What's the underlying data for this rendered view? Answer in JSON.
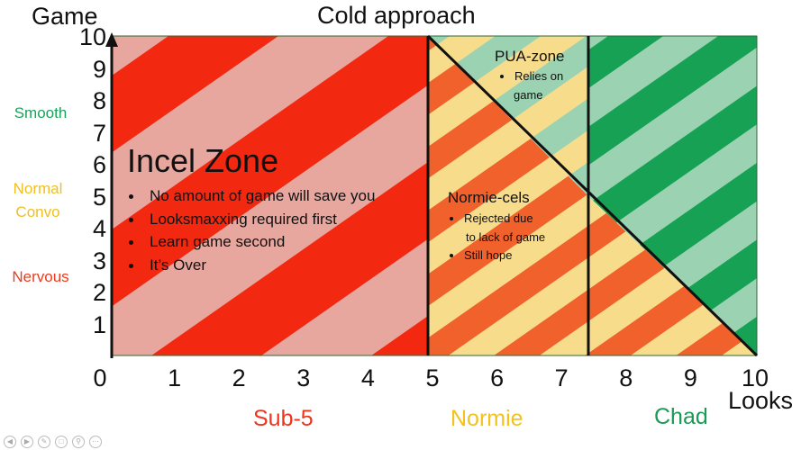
{
  "title": "Cold approach",
  "y_axis": {
    "label": "Game",
    "ticks": [
      "10",
      "9",
      "8",
      "7",
      "6",
      "5",
      "4",
      "3",
      "2",
      "1"
    ]
  },
  "x_axis": {
    "label": "Looks",
    "ticks": [
      "0",
      "1",
      "2",
      "3",
      "4",
      "5",
      "6",
      "7",
      "8",
      "9",
      "10"
    ]
  },
  "game_levels": [
    {
      "label": "Smooth",
      "color": "#1aa35a"
    },
    {
      "label": "Normal\nConvo",
      "color": "#f0c020"
    },
    {
      "label": "Nervous",
      "color": "#ee3a1c"
    }
  ],
  "zones": {
    "incel": {
      "title": "Incel Zone",
      "bullets": [
        "No amount of game will save you",
        "Looksmaxxing required first",
        "Learn game second",
        "It’s Over"
      ],
      "colors": [
        "#f22810",
        "#e7a69e"
      ]
    },
    "normie_cels": {
      "title": "Normie-cels",
      "bullets": [
        "Rejected due",
        "to lack of game",
        "Still hope"
      ],
      "colors": [
        "#f0612c",
        "#f7dc8c"
      ]
    },
    "pua": {
      "title": "PUA-zone",
      "bullets": [
        "Relies on",
        "game"
      ],
      "colors": [
        "#9bd3b2",
        "#f7dc8c"
      ]
    },
    "chad": {
      "colors": [
        "#16a154",
        "#9bd3b2"
      ],
      "lower_colors": [
        "#f0612c",
        "#f7dc8c"
      ]
    }
  },
  "regions": [
    {
      "label": "Sub-5",
      "color": "#f0341c"
    },
    {
      "label": "Normie",
      "color": "#f2c21e"
    },
    {
      "label": "Chad",
      "color": "#1a9a55"
    }
  ],
  "chart_data": {
    "type": "diagram",
    "x_range": [
      0,
      10
    ],
    "y_range": [
      0,
      10
    ],
    "vertical_dividers": [
      5,
      7.5
    ],
    "diagonal": {
      "from": [
        5,
        10
      ],
      "to": [
        10,
        0
      ]
    }
  },
  "toolbar_icons": [
    "arrow-left-icon",
    "arrow-right-icon",
    "pen-icon",
    "copy-icon",
    "zoom-icon",
    "more-icon"
  ]
}
